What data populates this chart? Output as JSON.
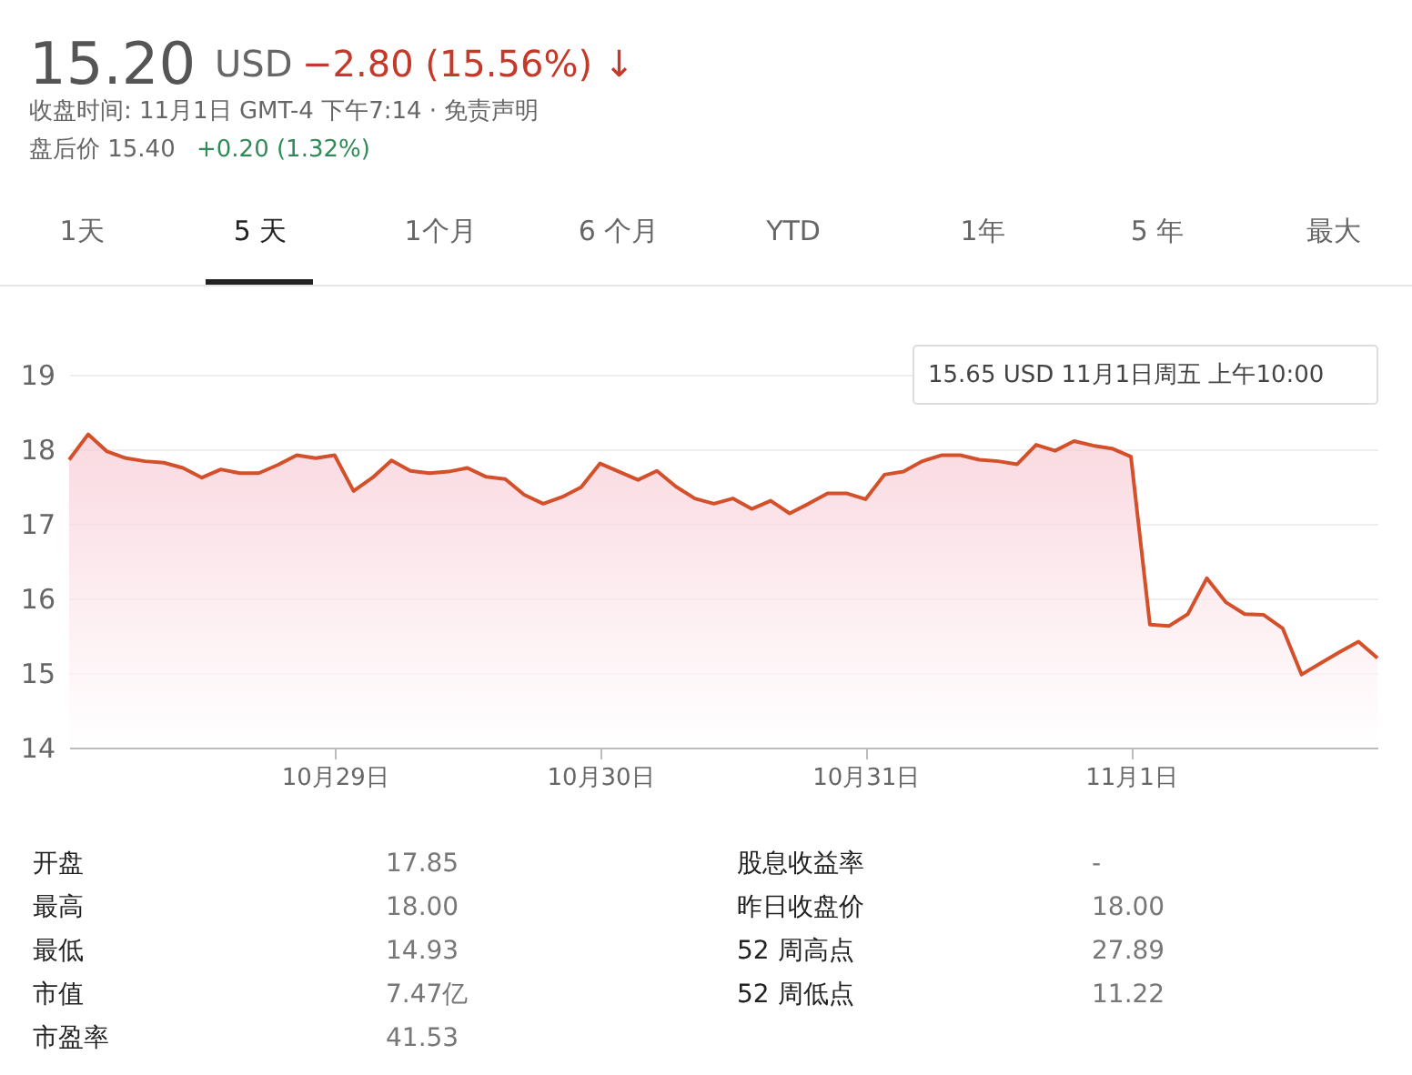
{
  "chart_data": {
    "type": "area",
    "title": "15.20",
    "categories": [
      null,
      null,
      null,
      null,
      null,
      null,
      null,
      null,
      null,
      null,
      null,
      null,
      null,
      null,
      "10月29日",
      null,
      null,
      null,
      null,
      null,
      null,
      null,
      null,
      null,
      null,
      null,
      null,
      null,
      "10月30日",
      null,
      null,
      null,
      null,
      null,
      null,
      null,
      null,
      null,
      null,
      null,
      null,
      null,
      "10月31日",
      null,
      null,
      null,
      null,
      null,
      null,
      null,
      null,
      null,
      null,
      null,
      null,
      null,
      "11月1日",
      null,
      null,
      null,
      null,
      null,
      null,
      null,
      null,
      null,
      null,
      null,
      null,
      null
    ],
    "series": [
      {
        "color": "#d4502a",
        "values": [
          17.86,
          18.2,
          17.97,
          17.88,
          17.84,
          17.82,
          17.75,
          17.62,
          17.73,
          17.68,
          17.68,
          17.79,
          17.92,
          17.88,
          17.92,
          17.44,
          17.62,
          17.85,
          17.71,
          17.68,
          17.7,
          17.75,
          17.63,
          17.6,
          17.39,
          17.27,
          17.36,
          17.49,
          17.81,
          17.7,
          17.59,
          17.71,
          17.5,
          17.34,
          17.27,
          17.34,
          17.2,
          17.31,
          17.14,
          17.27,
          17.41,
          17.41,
          17.33,
          17.66,
          17.7,
          17.84,
          17.92,
          17.92,
          17.86,
          17.84,
          17.8,
          18.06,
          17.98,
          18.11,
          18.05,
          18.01,
          17.9,
          15.65,
          15.63,
          15.79,
          16.27,
          15.95,
          15.79,
          15.78,
          15.6,
          14.98,
          15.13,
          15.28,
          15.42,
          15.2
        ]
      }
    ],
    "ylim": [
      14,
      19
    ],
    "yticks": [
      14,
      15,
      16,
      17,
      18,
      19
    ],
    "grid": "y",
    "annotations": [
      "15.65 USD  11月1日周五 上午10:00",
      "USD",
      "−2.80 (15.56%) ↓",
      "收盘时间: 11月1日 GMT-4 下午7:14 · 免责声明",
      "盘后价 15.40",
      "+0.20 (1.32%)",
      "1天",
      "5 天",
      "1个月",
      "6 个月",
      "YTD",
      "1年",
      "5 年",
      "最大",
      "开盘",
      "17.85",
      "股息收益率",
      "-",
      "最高",
      "18.00",
      "昨日收盘价",
      "18.00",
      "最低",
      "14.93",
      "52 周高点",
      "27.89",
      "市值",
      "7.47亿",
      "52 周低点",
      "11.22",
      "市盈率",
      "41.53"
    ]
  }
}
